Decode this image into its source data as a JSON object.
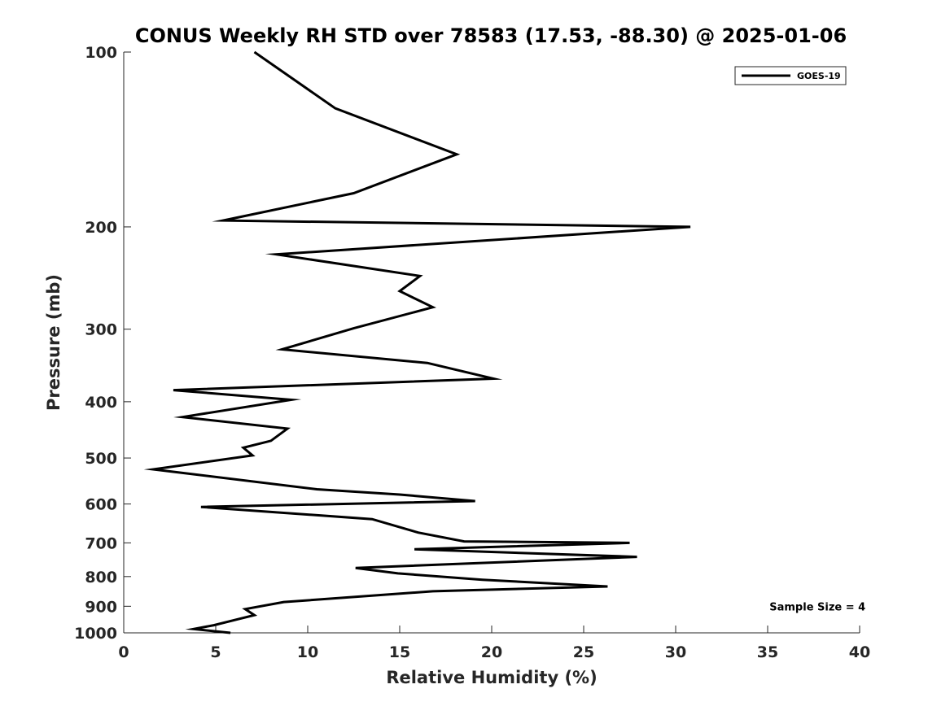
{
  "chart_data": {
    "type": "line",
    "title": "CONUS Weekly RH STD over 78583 (17.53, -88.30) @ 2025-01-06",
    "xlabel": "Relative Humidity (%)",
    "ylabel": "Pressure (mb)",
    "xlim": [
      0,
      40
    ],
    "ylim": [
      100,
      1000
    ],
    "y_scale": "log",
    "y_direction": "reversed",
    "grid": false,
    "legend_position": "top-right",
    "x_ticks": [
      0,
      5,
      10,
      15,
      20,
      25,
      30,
      35,
      40
    ],
    "y_ticks": [
      100,
      200,
      300,
      400,
      500,
      600,
      700,
      800,
      900,
      1000
    ],
    "series": [
      {
        "name": "GOES-19",
        "color": "#000000",
        "x": [
          7.1,
          11.5,
          18.1,
          12.5,
          5.4,
          30.8,
          8.3,
          16.1,
          15.0,
          16.8,
          12.5,
          8.6,
          16.5,
          20.1,
          2.7,
          9.1,
          3.2,
          8.9,
          8.0,
          6.5,
          7.0,
          1.6,
          10.5,
          15.0,
          19.1,
          4.2,
          13.5,
          16.0,
          18.5,
          27.5,
          15.8,
          27.9,
          12.6,
          14.9,
          19.5,
          26.3,
          16.8,
          8.7,
          6.6,
          7.1,
          4.9,
          3.8,
          5.8
        ],
        "y": [
          100,
          125,
          150,
          175,
          195,
          200,
          223,
          243,
          258,
          275,
          299,
          325,
          343,
          365,
          382,
          397,
          425,
          445,
          467,
          480,
          495,
          523,
          566,
          578,
          593,
          607,
          637,
          672,
          696,
          700,
          718,
          740,
          773,
          790,
          810,
          832,
          848,
          885,
          910,
          932,
          970,
          985,
          1000
        ]
      }
    ],
    "annotations": [
      {
        "text": "Sample Size = 4",
        "x": 35.1,
        "y": 900
      }
    ]
  }
}
